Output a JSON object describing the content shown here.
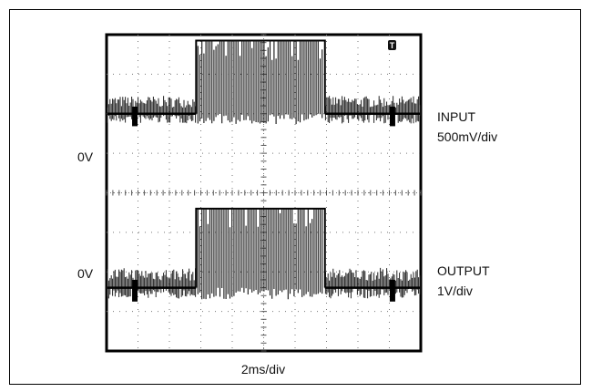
{
  "chart_data": {
    "type": "line",
    "title": "",
    "scope": {
      "horizontal_divisions": 10,
      "vertical_divisions": 8,
      "trigger_marker": "T"
    },
    "xlabel": "2ms/div",
    "channels": [
      {
        "name": "INPUT",
        "scale": "500mV/div",
        "zero_label": "0V",
        "zero_div": 2.0,
        "burst_start_div": 2.85,
        "burst_end_div": 6.95,
        "burst_amplitude_div": 1.85,
        "idle_amplitude_div": 0.45
      },
      {
        "name": "OUTPUT",
        "scale": "1V/div",
        "zero_label": "0V",
        "zero_div": 6.4,
        "burst_start_div": 2.85,
        "burst_end_div": 6.95,
        "burst_amplitude_div": 2.0,
        "idle_amplitude_div": 0.5
      }
    ]
  }
}
